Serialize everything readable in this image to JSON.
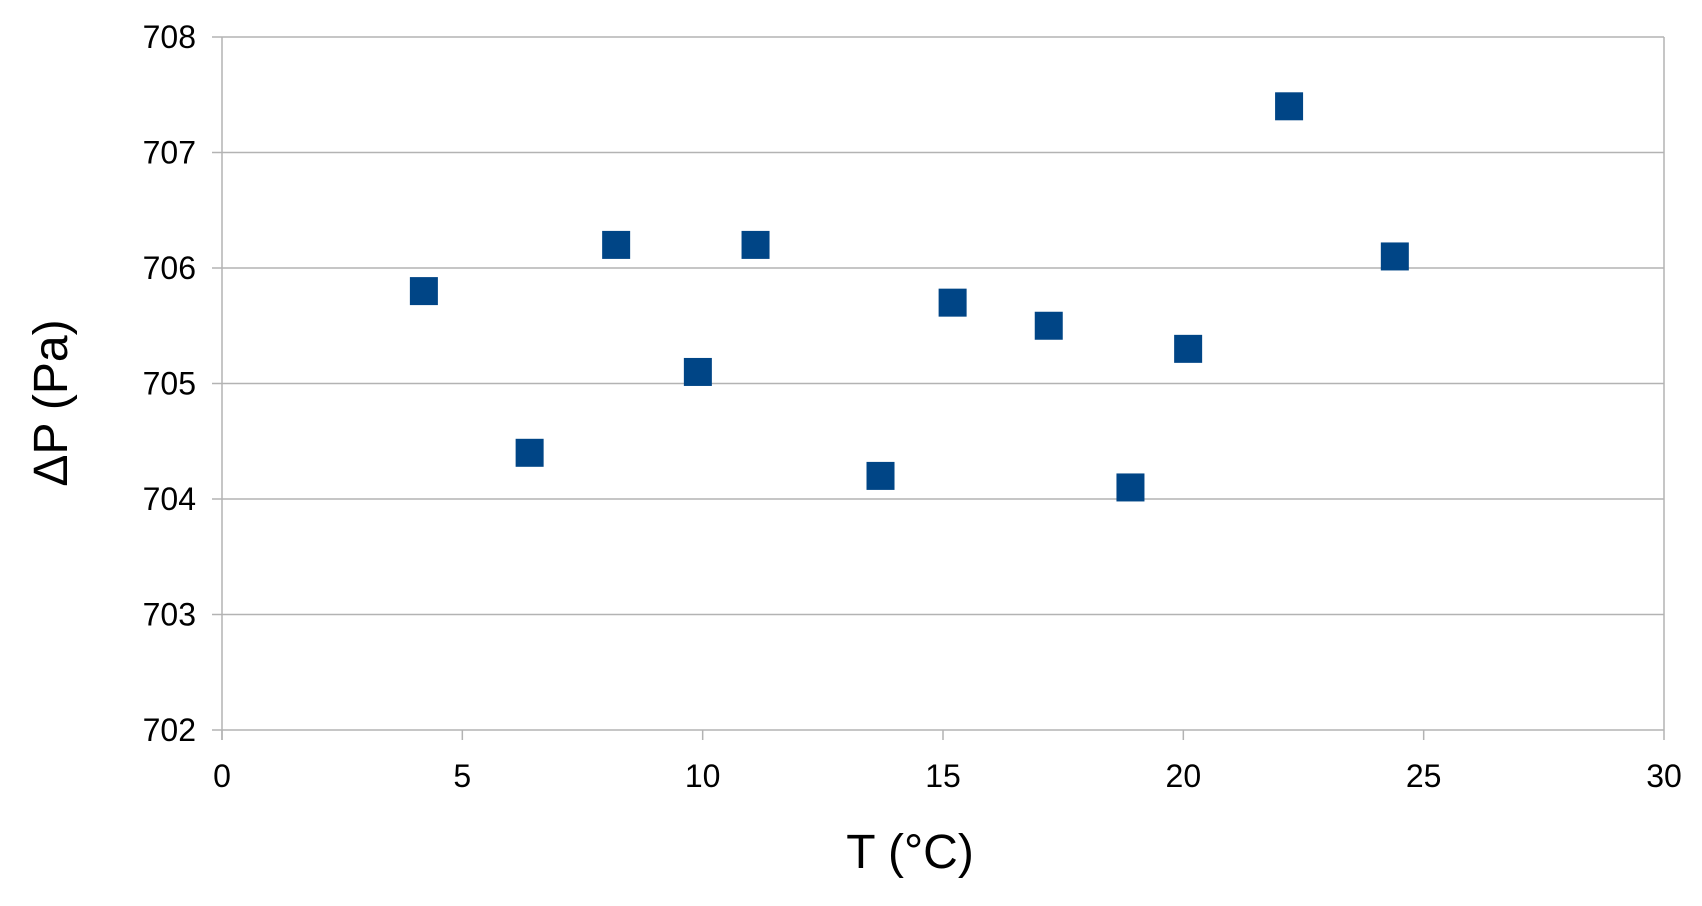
{
  "chart_data": {
    "type": "scatter",
    "xlabel": "T (°C)",
    "ylabel": "ΔP (Pa)",
    "xlim": [
      0,
      30
    ],
    "ylim": [
      702,
      708
    ],
    "x_ticks": [
      0,
      5,
      10,
      15,
      20,
      25,
      30
    ],
    "y_ticks": [
      702,
      703,
      704,
      705,
      706,
      707,
      708
    ],
    "x_tick_labels": [
      "0",
      "5",
      "10",
      "15",
      "20",
      "25",
      "30"
    ],
    "y_tick_labels": [
      "702",
      "703",
      "704",
      "705",
      "706",
      "707",
      "708"
    ],
    "grid": "horizontal",
    "legend": "none",
    "marker": "square",
    "series": [
      {
        "color": "#004586",
        "points": [
          {
            "x": 4.2,
            "y": 705.8
          },
          {
            "x": 6.4,
            "y": 704.4
          },
          {
            "x": 8.2,
            "y": 706.2
          },
          {
            "x": 9.9,
            "y": 705.1
          },
          {
            "x": 11.1,
            "y": 706.2
          },
          {
            "x": 13.7,
            "y": 704.2
          },
          {
            "x": 15.2,
            "y": 705.7
          },
          {
            "x": 17.2,
            "y": 705.5
          },
          {
            "x": 18.9,
            "y": 704.1
          },
          {
            "x": 20.1,
            "y": 705.3
          },
          {
            "x": 22.2,
            "y": 707.4
          },
          {
            "x": 24.4,
            "y": 706.1
          }
        ]
      }
    ],
    "colors": {
      "gridline": "#b3b3b3",
      "axis": "#b3b3b3",
      "marker": "#004586"
    }
  }
}
